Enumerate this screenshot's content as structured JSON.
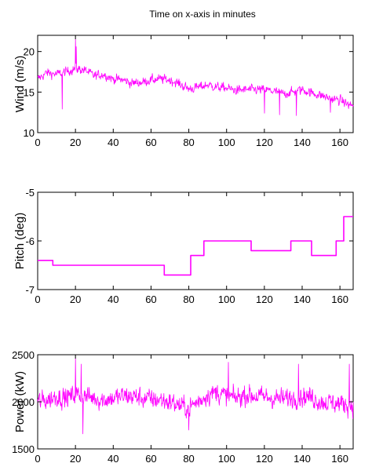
{
  "figure": {
    "title": "Time on x-axis in minutes"
  },
  "chart_data": [
    {
      "type": "line",
      "title": "Time on x-axis in minutes",
      "xlabel": "",
      "ylabel": "Wind (m/s)",
      "xlim": [
        0,
        167
      ],
      "ylim": [
        10,
        22
      ],
      "xticks": [
        0,
        20,
        40,
        60,
        80,
        100,
        120,
        140,
        160
      ],
      "yticks": [
        10,
        15,
        20
      ],
      "grid": false,
      "color": "#ff00ff",
      "series": [
        {
          "x": [
            0,
            5,
            10,
            15,
            20,
            25,
            30,
            35,
            40,
            45,
            50,
            55,
            60,
            65,
            70,
            75,
            80,
            85,
            90,
            95,
            100,
            105,
            110,
            115,
            120,
            125,
            130,
            135,
            140,
            145,
            150,
            155,
            160,
            165
          ],
          "y": [
            16.6,
            17.4,
            17.2,
            17.5,
            17.9,
            17.7,
            17.0,
            17.2,
            16.6,
            16.5,
            16.1,
            16.2,
            16.5,
            16.6,
            16.5,
            16.0,
            15.4,
            15.6,
            15.9,
            15.6,
            15.5,
            15.2,
            15.3,
            15.3,
            15.3,
            15.1,
            14.8,
            15.0,
            15.3,
            14.9,
            14.6,
            14.2,
            14.0,
            13.4
          ],
          "noise": 1.4,
          "spikes": [
            [
              20,
              21.5
            ],
            [
              20.5,
              20.6
            ],
            [
              13,
              12.9
            ],
            [
              120,
              12.4
            ],
            [
              128,
              12.2
            ],
            [
              137,
              12.1
            ],
            [
              155,
              12.5
            ]
          ]
        }
      ]
    },
    {
      "type": "line",
      "title": "",
      "xlabel": "",
      "ylabel": "Pitch (deg)",
      "xlim": [
        0,
        167
      ],
      "ylim": [
        -7,
        -5
      ],
      "xticks": [
        0,
        20,
        40,
        60,
        80,
        100,
        120,
        140,
        160
      ],
      "yticks": [
        -7,
        -6,
        -5
      ],
      "grid": false,
      "color": "#ff00ff",
      "series": [
        {
          "x": [
            0,
            8,
            8,
            67,
            67,
            81,
            81,
            88,
            88,
            113,
            113,
            134,
            134,
            145,
            145,
            158,
            158,
            162,
            162,
            167
          ],
          "y": [
            -6.4,
            -6.4,
            -6.5,
            -6.5,
            -6.7,
            -6.7,
            -6.3,
            -6.3,
            -6.0,
            -6.0,
            -6.2,
            -6.2,
            -6.0,
            -6.0,
            -6.3,
            -6.3,
            -6.0,
            -6.0,
            -5.5,
            -5.5
          ]
        }
      ]
    },
    {
      "type": "line",
      "title": "",
      "xlabel": "",
      "ylabel": "Power (kW)",
      "xlim": [
        0,
        167
      ],
      "ylim": [
        1500,
        2500
      ],
      "xticks": [
        0,
        20,
        40,
        60,
        80,
        100,
        120,
        140,
        160
      ],
      "yticks": [
        1500,
        2000,
        2500
      ],
      "grid": false,
      "color": "#ff00ff",
      "series": [
        {
          "x": [
            0,
            5,
            10,
            15,
            20,
            25,
            30,
            35,
            40,
            45,
            50,
            55,
            60,
            65,
            70,
            75,
            80,
            85,
            90,
            95,
            100,
            105,
            110,
            115,
            120,
            125,
            130,
            135,
            140,
            145,
            150,
            155,
            160,
            165
          ],
          "y": [
            2000,
            2020,
            2060,
            2040,
            2080,
            2060,
            2040,
            2020,
            2040,
            2060,
            2060,
            2040,
            2030,
            2020,
            2000,
            1960,
            1940,
            2000,
            2080,
            2100,
            2060,
            2040,
            2080,
            2060,
            2050,
            2040,
            2030,
            2040,
            2060,
            2050,
            2000,
            1990,
            1980,
            1970
          ],
          "noise": 260,
          "spikes": [
            [
              20,
              2460
            ],
            [
              23,
              2400
            ],
            [
              24,
              1660
            ],
            [
              80,
              1700
            ],
            [
              101,
              2420
            ],
            [
              138,
              2400
            ],
            [
              165,
              2400
            ]
          ]
        }
      ]
    }
  ]
}
